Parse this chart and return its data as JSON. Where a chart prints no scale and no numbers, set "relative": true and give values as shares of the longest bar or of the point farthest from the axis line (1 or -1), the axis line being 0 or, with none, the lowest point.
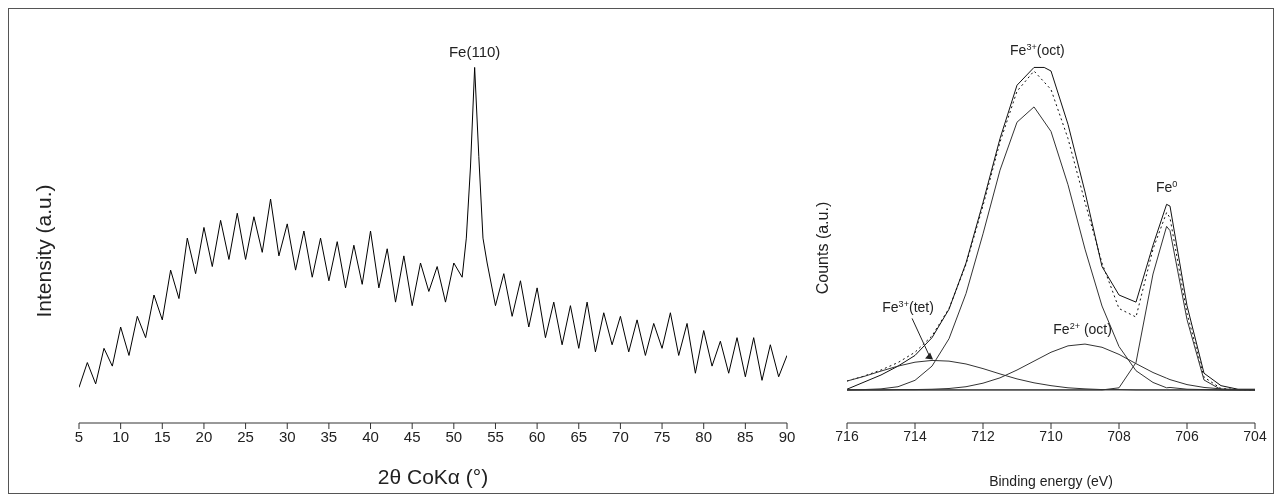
{
  "chart_data": [
    {
      "type": "line",
      "relative": true,
      "xlabel": "2θ CoKα (°)",
      "ylabel": "Intensity (a.u.)",
      "xlim": [
        5,
        90
      ],
      "xticks": [
        5,
        10,
        15,
        20,
        25,
        30,
        35,
        40,
        45,
        50,
        55,
        60,
        65,
        70,
        75,
        80,
        85,
        90
      ],
      "annotations": [
        {
          "text": "Fe(110)",
          "x": 52.5,
          "y": 1
        }
      ],
      "x": [
        5,
        6,
        7,
        8,
        9,
        10,
        11,
        12,
        13,
        14,
        15,
        16,
        17,
        18,
        19,
        20,
        21,
        22,
        23,
        24,
        25,
        26,
        27,
        28,
        29,
        30,
        31,
        32,
        33,
        34,
        35,
        36,
        37,
        38,
        39,
        40,
        41,
        42,
        43,
        44,
        45,
        46,
        47,
        48,
        49,
        50,
        51,
        51.5,
        52,
        52.5,
        53,
        53.5,
        54,
        55,
        56,
        57,
        58,
        59,
        60,
        61,
        62,
        63,
        64,
        65,
        66,
        67,
        68,
        69,
        70,
        71,
        72,
        73,
        74,
        75,
        76,
        77,
        78,
        79,
        80,
        81,
        82,
        83,
        84,
        85,
        86,
        87,
        88,
        89,
        90
      ],
      "series": [
        {
          "color": "#000000",
          "values": [
            0.1,
            0.17,
            0.11,
            0.21,
            0.16,
            0.27,
            0.19,
            0.3,
            0.24,
            0.36,
            0.29,
            0.43,
            0.35,
            0.52,
            0.42,
            0.55,
            0.44,
            0.57,
            0.46,
            0.59,
            0.46,
            0.58,
            0.48,
            0.63,
            0.47,
            0.56,
            0.43,
            0.54,
            0.41,
            0.52,
            0.4,
            0.51,
            0.38,
            0.5,
            0.39,
            0.54,
            0.38,
            0.49,
            0.34,
            0.47,
            0.33,
            0.45,
            0.37,
            0.44,
            0.34,
            0.45,
            0.41,
            0.52,
            0.72,
            1,
            0.75,
            0.52,
            0.45,
            0.33,
            0.42,
            0.3,
            0.4,
            0.27,
            0.38,
            0.24,
            0.34,
            0.22,
            0.33,
            0.21,
            0.34,
            0.2,
            0.31,
            0.22,
            0.3,
            0.2,
            0.29,
            0.19,
            0.28,
            0.21,
            0.31,
            0.19,
            0.28,
            0.14,
            0.26,
            0.16,
            0.23,
            0.14,
            0.24,
            0.13,
            0.24,
            0.12,
            0.22,
            0.13,
            0.19
          ]
        }
      ]
    },
    {
      "type": "line",
      "relative": true,
      "xlabel": "Binding energy (eV)",
      "ylabel": "Counts (a.u.)",
      "xlim": [
        716,
        704
      ],
      "xticks": [
        716,
        714,
        712,
        710,
        708,
        706,
        704
      ],
      "annotations": [
        {
          "text": "Fe$^{3+}$(oct)",
          "x": 710.4,
          "y": 1
        },
        {
          "text": "Fe$^{0}$",
          "x": 706.6,
          "y": 0.615
        },
        {
          "text": "Fe$^{2+}$ (oct)",
          "x": 709.07,
          "y": 0.222
        },
        {
          "text": "Fe$^{3+}$(tet)",
          "x": 713.38,
          "y": 0.176
        }
      ],
      "x": [
        716,
        715.5,
        715,
        714.5,
        714,
        713.5,
        713,
        712.5,
        712,
        711.5,
        711,
        710.5,
        710,
        709.5,
        709,
        708.5,
        708,
        707.5,
        707,
        706.6,
        706.5,
        706,
        705.5,
        705,
        704.5,
        704
      ],
      "series": [
        {
          "color": "#111111",
          "line_style": "solid",
          "x": [
            716,
            715.5,
            715,
            714.5,
            714,
            713.5,
            713,
            712.5,
            712,
            711.5,
            711,
            710.5,
            710.2,
            710,
            709.5,
            709,
            708.5,
            708,
            707.5,
            707,
            706.6,
            706.5,
            706,
            705.5,
            705,
            704.5,
            704
          ],
          "values": [
            0.095,
            0.115,
            0.135,
            0.16,
            0.19,
            0.24,
            0.32,
            0.45,
            0.62,
            0.8,
            0.95,
            1.0,
            1.0,
            0.99,
            0.84,
            0.65,
            0.44,
            0.36,
            0.34,
            0.5,
            0.615,
            0.61,
            0.33,
            0.14,
            0.105,
            0.095,
            0.095
          ]
        },
        {
          "color": "#111111",
          "line_style": "dotted",
          "values": [
            0.118,
            0.132,
            0.149,
            0.17,
            0.199,
            0.245,
            0.322,
            0.446,
            0.611,
            0.79,
            0.933,
            0.99,
            0.938,
            0.8,
            0.621,
            0.45,
            0.322,
            0.298,
            0.489,
            0.592,
            0.577,
            0.308,
            0.129,
            0.097,
            0.094,
            0.093
          ]
        },
        {
          "color": "#333333",
          "line_style": "solid",
          "values": [
            0.093,
            0.094,
            0.096,
            0.102,
            0.12,
            0.16,
            0.237,
            0.364,
            0.532,
            0.711,
            0.846,
            0.889,
            0.82,
            0.67,
            0.489,
            0.329,
            0.215,
            0.147,
            0.114,
            0.099,
            0.1,
            0.095,
            0.094,
            0.093,
            0.093,
            0.093
          ]
        },
        {
          "color": "#333333",
          "line_style": "solid",
          "values": [
            0.093,
            0.093,
            0.093,
            0.093,
            0.093,
            0.093,
            0.093,
            0.093,
            0.093,
            0.093,
            0.093,
            0.093,
            0.093,
            0.093,
            0.093,
            0.093,
            0.099,
            0.17,
            0.419,
            0.553,
            0.541,
            0.291,
            0.121,
            0.094,
            0.093,
            0.093
          ]
        },
        {
          "color": "#333333",
          "line_style": "solid",
          "values": [
            0.093,
            0.093,
            0.093,
            0.094,
            0.094,
            0.095,
            0.097,
            0.102,
            0.112,
            0.127,
            0.149,
            0.174,
            0.199,
            0.217,
            0.222,
            0.213,
            0.193,
            0.167,
            0.142,
            0.126,
            0.122,
            0.108,
            0.1,
            0.096,
            0.094,
            0.093
          ]
        },
        {
          "color": "#333333",
          "line_style": "solid",
          "values": [
            0.118,
            0.131,
            0.146,
            0.16,
            0.171,
            0.176,
            0.174,
            0.166,
            0.153,
            0.138,
            0.124,
            0.113,
            0.105,
            0.099,
            0.096,
            0.094,
            0.094,
            0.093,
            0.093,
            0.093,
            0.093,
            0.093,
            0.093,
            0.093,
            0.093,
            0.093
          ]
        }
      ],
      "ref_lines": [
        {
          "axis": "y",
          "value": 0.093,
          "color": "#333333"
        }
      ]
    }
  ]
}
